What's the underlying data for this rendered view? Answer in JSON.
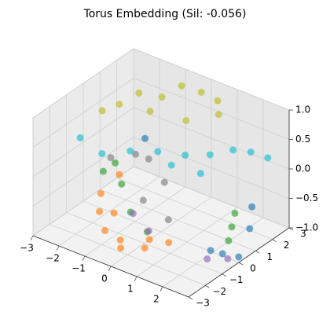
{
  "chart_data": {
    "type": "scatter3d",
    "title": "Torus Embedding (Sil: -0.056)",
    "xlim": [
      -3,
      3
    ],
    "ylim": [
      -3,
      3
    ],
    "zlim": [
      -1,
      1
    ],
    "xticks": [
      {
        "value": -3,
        "label": "−3"
      },
      {
        "value": -2,
        "label": "−2"
      },
      {
        "value": -1,
        "label": "−1"
      },
      0,
      1,
      2
    ],
    "yticks": [
      {
        "value": -3,
        "label": "−3"
      },
      {
        "value": -2,
        "label": "−2"
      },
      {
        "value": -1,
        "label": "−1"
      },
      0,
      1,
      2,
      3
    ],
    "zticks": [
      {
        "value": -1,
        "label": "−1.0"
      },
      {
        "value": -0.5,
        "label": "−0.5"
      },
      {
        "value": 0,
        "label": "0.0"
      },
      {
        "value": 0.5,
        "label": "0.5"
      },
      {
        "value": 1,
        "label": "1.0"
      }
    ],
    "grid": true,
    "series": [
      {
        "color": "#ff7f0e",
        "x": [
          -2.0,
          -1.6,
          -1.0,
          -0.2,
          0.6,
          1.2,
          -1.8,
          -0.6,
          0.2,
          -1.3
        ],
        "y": [
          -0.5,
          -1.2,
          -1.8,
          -2.1,
          -1.9,
          -1.4,
          0.3,
          -1.5,
          -1.0,
          -0.8
        ],
        "z": [
          -0.6,
          -0.7,
          -0.8,
          -0.9,
          -0.8,
          -0.7,
          -0.4,
          -0.95,
          -0.9,
          -0.75
        ]
      },
      {
        "color": "#2ca02c",
        "x": [
          -1.9,
          -1.2,
          -0.4,
          0.5,
          2.4,
          2.6,
          2.2,
          -2.1
        ],
        "y": [
          0.2,
          -0.5,
          -1.2,
          -1.6,
          0.5,
          0.0,
          1.0,
          -0.2
        ],
        "z": [
          -0.2,
          -0.3,
          -0.5,
          -0.6,
          -0.6,
          -0.7,
          -0.5,
          -0.3
        ]
      },
      {
        "color": "#7f7f7f",
        "x": [
          -1.5,
          -0.8,
          0.0,
          -2.2,
          -0.3,
          0.8
        ],
        "y": [
          0.8,
          0.5,
          0.2,
          0.4,
          -0.6,
          -0.8
        ],
        "z": [
          -0.1,
          0.0,
          -0.2,
          -0.2,
          -0.4,
          -0.5
        ]
      },
      {
        "color": "#1f77b4",
        "x": [
          2.5,
          2.8,
          2.3,
          2.9,
          -1.2,
          2.6
        ],
        "y": [
          -0.2,
          0.3,
          -0.6,
          0.8,
          0.9,
          1.4
        ],
        "z": [
          -0.9,
          -1.0,
          -0.8,
          -0.6,
          0.2,
          -0.4
        ]
      },
      {
        "color": "#9467bd",
        "x": [
          2.1,
          2.7,
          -0.5,
          0.3
        ],
        "y": [
          -0.5,
          -0.2,
          -0.9,
          -1.2
        ],
        "z": [
          -1.0,
          -0.95,
          -0.6,
          -0.7
        ]
      },
      {
        "color": "#bcbd22",
        "x": [
          -1.5,
          -1.0,
          -0.5,
          0.0,
          -2.0,
          0.5,
          -1.2,
          -0.2,
          0.8,
          -2.4
        ],
        "y": [
          1.0,
          1.6,
          2.0,
          2.4,
          0.6,
          2.6,
          1.2,
          1.8,
          2.2,
          0.2
        ],
        "z": [
          0.9,
          0.8,
          1.0,
          0.9,
          0.7,
          0.8,
          0.6,
          0.5,
          0.7,
          0.6
        ]
      },
      {
        "color": "#17becf",
        "x": [
          -1.5,
          -0.8,
          0.0,
          0.8,
          1.5,
          2.0,
          2.3,
          2.5,
          1.2,
          0.4,
          -2.6
        ],
        "y": [
          -1.2,
          -0.6,
          -0.2,
          0.2,
          0.6,
          1.2,
          1.8,
          2.5,
          0.5,
          0.0,
          -0.8
        ],
        "z": [
          0.3,
          0.35,
          0.4,
          0.4,
          0.45,
          0.5,
          0.4,
          0.2,
          0.1,
          0.2,
          0.3
        ]
      }
    ]
  }
}
